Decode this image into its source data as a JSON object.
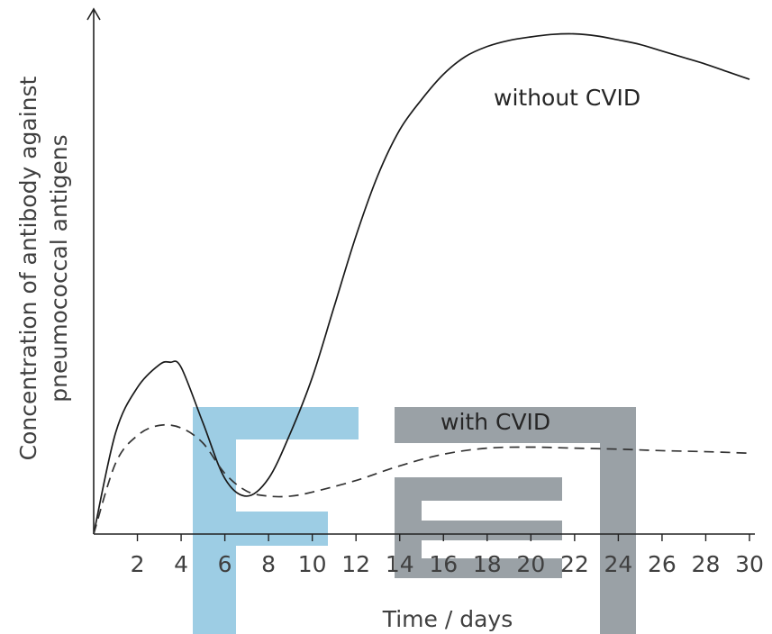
{
  "chart_data": {
    "type": "line",
    "title": "",
    "xlabel": "Time / days",
    "ylabel_lines": [
      "Concentration of antibody against",
      "pneumococcal antigens"
    ],
    "xlim": [
      0,
      30
    ],
    "ylim": [
      0,
      100
    ],
    "x_ticks": [
      2,
      4,
      6,
      8,
      10,
      12,
      14,
      16,
      18,
      20,
      22,
      24,
      26,
      28,
      30
    ],
    "y_ticks_shown": false,
    "grid": false,
    "legend": "none",
    "series": [
      {
        "name": "without CVID",
        "line_style": "solid",
        "color": "#1a1a1a",
        "x": [
          0,
          1,
          2,
          3,
          3.5,
          4,
          5,
          6,
          7,
          8,
          9,
          10,
          11,
          12,
          13,
          14,
          15,
          16,
          17,
          18,
          19,
          20,
          21,
          22,
          23,
          24,
          25,
          26,
          27,
          28,
          29,
          30
        ],
        "y": [
          0,
          20,
          29,
          33.5,
          34,
          33,
          22,
          11,
          7.5,
          11,
          20,
          31,
          45,
          59,
          71,
          80,
          86,
          91,
          94.5,
          96.5,
          97.7,
          98.4,
          98.9,
          99,
          98.6,
          97.8,
          96.9,
          95.6,
          94.3,
          93,
          91.5,
          90
        ]
      },
      {
        "name": "with CVID",
        "line_style": "dashed",
        "color": "#333333",
        "x": [
          0,
          1,
          2,
          3,
          4,
          5,
          6,
          7,
          8,
          9,
          10,
          12,
          14,
          16,
          18,
          20,
          22,
          24,
          26,
          28,
          30
        ],
        "y": [
          0,
          14,
          19.5,
          21.5,
          21,
          18,
          12,
          8.5,
          7.5,
          7.5,
          8.3,
          10.6,
          13.5,
          15.8,
          17,
          17.2,
          17,
          16.8,
          16.5,
          16.3,
          16
        ]
      }
    ]
  },
  "watermark": {
    "color_blue": "#9dcde4",
    "color_gray": "#9aa1a6"
  }
}
